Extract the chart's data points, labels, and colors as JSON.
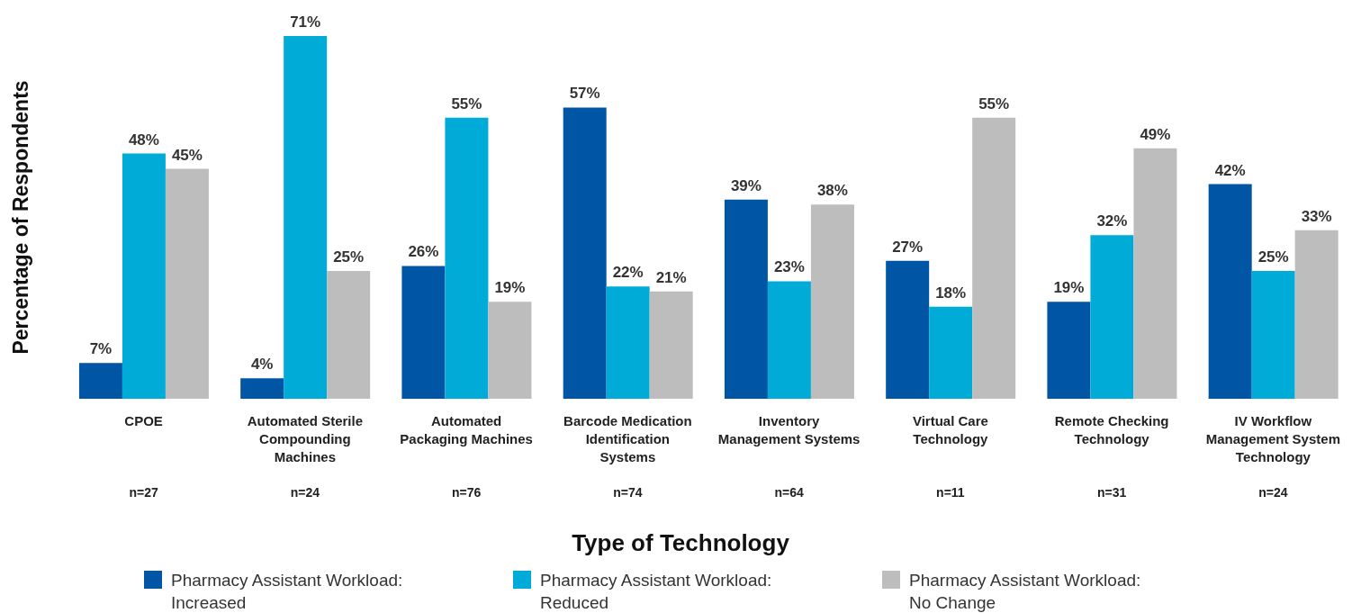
{
  "chart_data": {
    "type": "bar",
    "xlabel": "Type of Technology",
    "ylabel": "Percentage of Respondents",
    "categories": [
      "CPOE",
      "Automated Sterile Compounding Machines",
      "Automated Packaging Machines",
      "Barcode Medication Identification Systems",
      "Inventory Management Systems",
      "Virtual Care Technology",
      "Remote Checking Technology",
      "IV Workflow Management System Technology"
    ],
    "annotations": [
      "n=27",
      "n=24",
      "n=76",
      "n=74",
      "n=64",
      "n=11",
      "n=31",
      "n=24"
    ],
    "series": [
      {
        "name": "Pharmacy Assistant Workload: Increased",
        "color": "#0055a4",
        "values": [
          7,
          4,
          26,
          57,
          39,
          27,
          19,
          42
        ],
        "value_labels": [
          "7%",
          "4%",
          "26%",
          "57%",
          "39%",
          "27%",
          "19%",
          "42%"
        ]
      },
      {
        "name": "Pharmacy Assistant Workload: Reduced",
        "color": "#00acd7",
        "values": [
          48,
          71,
          55,
          22,
          23,
          18,
          32,
          25
        ],
        "value_labels": [
          "48%",
          "71%",
          "55%",
          "22%",
          "23%",
          "18%",
          "32%",
          "25%"
        ]
      },
      {
        "name": "Pharmacy Assistant Workload: No Change",
        "color": "#bdbdbd",
        "values": [
          45,
          25,
          19,
          21,
          38,
          55,
          49,
          33
        ],
        "value_labels": [
          "45%",
          "25%",
          "19%",
          "21%",
          "38%",
          "55%",
          "49%",
          "33%"
        ]
      }
    ],
    "legend": "bottom",
    "grid": false
  }
}
